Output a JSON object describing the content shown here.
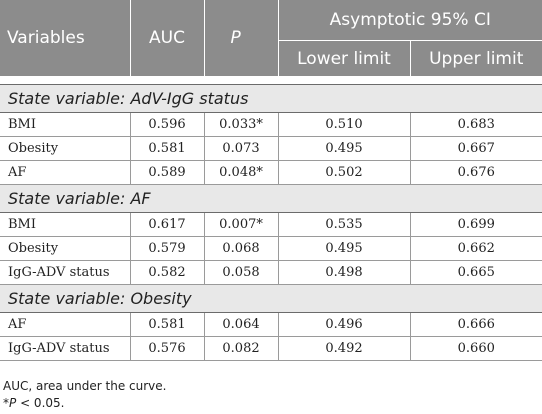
{
  "header": {
    "variables": "Variables",
    "auc": "AUC",
    "p": "P",
    "ci": "Asymptotic 95% CI",
    "lower": "Lower limit",
    "upper": "Upper limit"
  },
  "sections": [
    {
      "title": "State variable: AdV-IgG status",
      "rows": [
        {
          "variable": "BMI",
          "auc": "0.596",
          "p": "0.033*",
          "lower": "0.510",
          "upper": "0.683"
        },
        {
          "variable": "Obesity",
          "auc": "0.581",
          "p": "0.073",
          "lower": "0.495",
          "upper": "0.667"
        },
        {
          "variable": "AF",
          "auc": "0.589",
          "p": "0.048*",
          "lower": "0.502",
          "upper": "0.676"
        }
      ]
    },
    {
      "title": "State variable: AF",
      "rows": [
        {
          "variable": "BMI",
          "auc": "0.617",
          "p": "0.007*",
          "lower": "0.535",
          "upper": "0.699"
        },
        {
          "variable": "Obesity",
          "auc": "0.579",
          "p": "0.068",
          "lower": "0.495",
          "upper": "0.662"
        },
        {
          "variable": "IgG-ADV status",
          "auc": "0.582",
          "p": "0.058",
          "lower": "0.498",
          "upper": "0.665"
        }
      ]
    },
    {
      "title": "State variable: Obesity",
      "rows": [
        {
          "variable": "AF",
          "auc": "0.581",
          "p": "0.064",
          "lower": "0.496",
          "upper": "0.666"
        },
        {
          "variable": "IgG-ADV status",
          "auc": "0.576",
          "p": "0.082",
          "lower": "0.492",
          "upper": "0.660"
        }
      ]
    }
  ],
  "notes": {
    "abbrev": "AUC, area under the curve.",
    "sig_star": "*",
    "sig_p": "P",
    "sig_rest": " < 0.05."
  }
}
